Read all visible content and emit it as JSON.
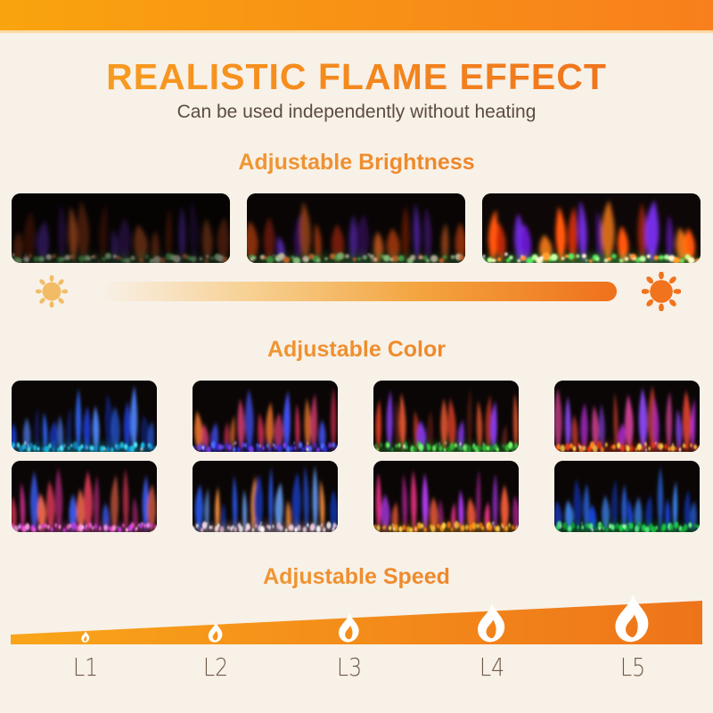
{
  "page": {
    "background": "#f8f1e8",
    "top_band": {
      "from": "#f9a40e",
      "to": "#f87f1d",
      "underline": "#fbd9a4"
    }
  },
  "header": {
    "title": "REALISTIC FLAME EFFECT",
    "subtitle": "Can be used independently without heating",
    "title_gradient": [
      "#f9a320",
      "#ee6d1c"
    ],
    "subtitle_color": "#5b4c42"
  },
  "brightness": {
    "heading": "Adjustable Brightness",
    "heading_gradient": [
      "#f2a93c",
      "#ec7420"
    ],
    "panels": [
      {
        "name": "brightness-level-low",
        "brightness": 0.55,
        "saturate": 0.85,
        "flames": [
          "#c2410f",
          "#7e1d08",
          "#6a2fd8",
          "#3c1468",
          "#e85c1d"
        ],
        "crystals": [
          "#4fbf55",
          "#9adf8f",
          "#e4dcc0",
          "#e8702a"
        ]
      },
      {
        "name": "brightness-level-medium",
        "brightness": 0.82,
        "saturate": 1,
        "flames": [
          "#d84a12",
          "#8e2109",
          "#7434ee",
          "#451578",
          "#f06a22"
        ],
        "crystals": [
          "#4fbf55",
          "#a4e795",
          "#efe5c5",
          "#ef7a2e"
        ]
      },
      {
        "name": "brightness-level-high",
        "brightness": 1.2,
        "saturate": 1.15,
        "flames": [
          "#f25a16",
          "#a82a0c",
          "#8438ff",
          "#52189a",
          "#ff8a2a"
        ],
        "crystals": [
          "#58cc5e",
          "#b2f09d",
          "#fff0cc",
          "#ff8a33"
        ]
      }
    ],
    "slider": {
      "left_icon": "sun-dim-icon",
      "right_icon": "sun-bright-icon",
      "sun_dim_color": "#f2bc66",
      "sun_bright_color": "#f1731d",
      "bar_gradient": [
        "rgba(241,150,40,0)",
        "#f7cf90",
        "#f3a43f",
        "#ef711b"
      ]
    }
  },
  "color": {
    "heading": "Adjustable Color",
    "heading_gradient": [
      "#f2a93c",
      "#ec7420"
    ],
    "panels": [
      {
        "name": "color-blue-flame-cyan-crystal",
        "flames": [
          "#1d43e8",
          "#4f86ff",
          "#101f66",
          "#2a63f0"
        ],
        "crystals": [
          "#18c8e8",
          "#52e6ff",
          "#0e8fd4"
        ]
      },
      {
        "name": "color-orange-pink-flame-blue-crystal",
        "flames": [
          "#f2762c",
          "#e8417a",
          "#4150f0",
          "#c22a4a"
        ],
        "crystals": [
          "#2b2fd8",
          "#7a3cf0",
          "#4f6bff"
        ]
      },
      {
        "name": "color-red-purple-flame-green-crystal",
        "flames": [
          "#d23c24",
          "#8a3cf0",
          "#5a1c14",
          "#e05430"
        ],
        "crystals": [
          "#2ecc3b",
          "#7dff6f",
          "#1a9426"
        ]
      },
      {
        "name": "color-pink-purple-flame-red-crystal",
        "flames": [
          "#e045a0",
          "#8a46f0",
          "#e04432",
          "#b02ad0"
        ],
        "crystals": [
          "#f03a12",
          "#ff8c1e",
          "#ffd24a"
        ]
      },
      {
        "name": "color-red-pink-flame-pink-crystal",
        "flames": [
          "#e03a58",
          "#b02a7a",
          "#3a5af0",
          "#f06a4a"
        ],
        "crystals": [
          "#f05ac8",
          "#ff9ce4",
          "#d23af0"
        ]
      },
      {
        "name": "color-blue-flame-white-crystal",
        "flames": [
          "#2a5af0",
          "#6aa6ff",
          "#f08c3a",
          "#1436b0"
        ],
        "crystals": [
          "#f4d6e6",
          "#ffffff",
          "#e8b8d8"
        ]
      },
      {
        "name": "color-magenta-flame-gold-crystal",
        "flames": [
          "#e0307e",
          "#b03af0",
          "#f05a3a",
          "#90207a"
        ],
        "crystals": [
          "#f2a312",
          "#ffd44e",
          "#ff8210"
        ]
      },
      {
        "name": "color-blue-flame-green-crystal",
        "flames": [
          "#1745e0",
          "#3f8cff",
          "#0e2a8f",
          "#2a6af0"
        ],
        "crystals": [
          "#17d447",
          "#63ff8a",
          "#0fa232"
        ]
      }
    ]
  },
  "speed": {
    "heading": "Adjustable Speed",
    "heading_gradient": [
      "#f2a93c",
      "#ec7420"
    ],
    "wedge_gradient": [
      "#f9a51a",
      "#ee741a"
    ],
    "flame_icon": "flame-icon",
    "flame_color": "#ffffff",
    "label_color": "#6f5847",
    "levels": [
      {
        "label": "L1",
        "flame_height": 13
      },
      {
        "label": "L2",
        "flame_height": 23
      },
      {
        "label": "L3",
        "flame_height": 33
      },
      {
        "label": "L4",
        "flame_height": 44
      },
      {
        "label": "L5",
        "flame_height": 54
      }
    ]
  }
}
